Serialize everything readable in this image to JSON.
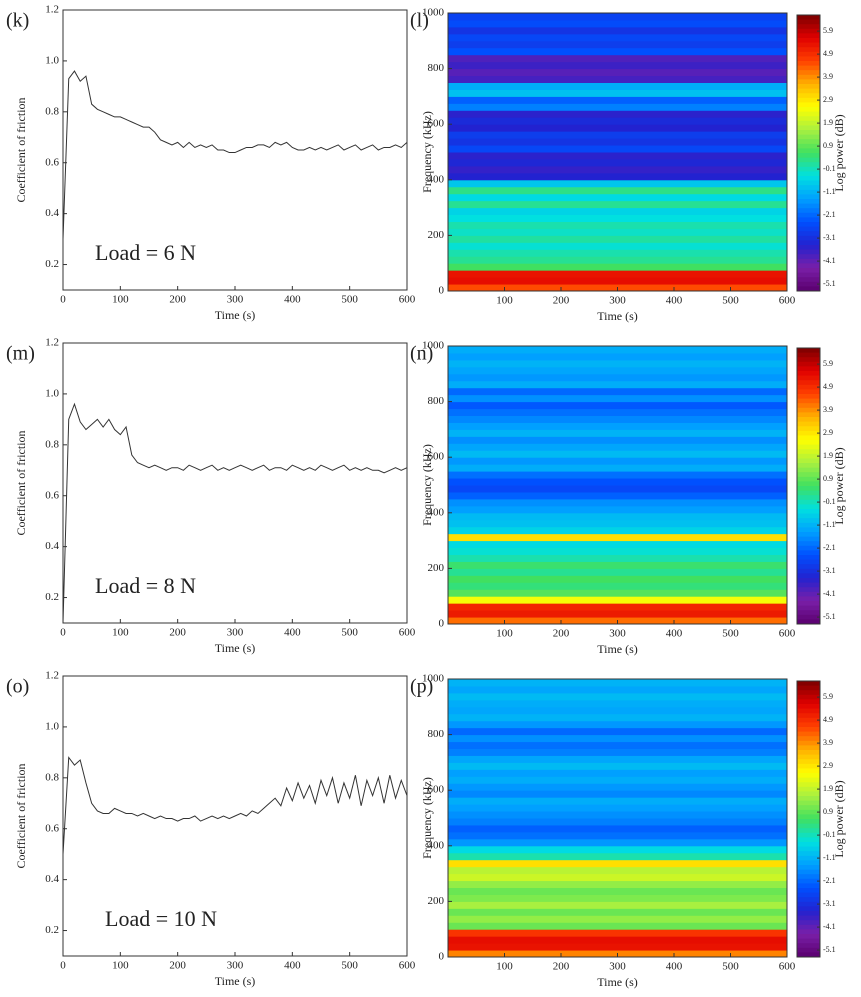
{
  "chart_data": [
    {
      "type": "line",
      "panel_label": "(k)",
      "annotation": "Load = 6 N",
      "xlabel": "Time (s)",
      "ylabel": "Coefficient of friction",
      "color": "#333333",
      "x": [
        0,
        10,
        20,
        30,
        40,
        50,
        60,
        70,
        80,
        90,
        100,
        110,
        120,
        130,
        140,
        150,
        160,
        170,
        180,
        190,
        200,
        210,
        220,
        230,
        240,
        250,
        260,
        270,
        280,
        290,
        300,
        310,
        320,
        330,
        340,
        350,
        360,
        370,
        380,
        390,
        400,
        410,
        420,
        430,
        440,
        450,
        460,
        470,
        480,
        490,
        500,
        510,
        520,
        530,
        540,
        550,
        560,
        570,
        580,
        590,
        600
      ],
      "values": [
        0.3,
        0.93,
        0.96,
        0.92,
        0.94,
        0.83,
        0.81,
        0.8,
        0.79,
        0.78,
        0.78,
        0.77,
        0.76,
        0.75,
        0.74,
        0.74,
        0.72,
        0.69,
        0.68,
        0.67,
        0.68,
        0.66,
        0.68,
        0.66,
        0.67,
        0.66,
        0.67,
        0.65,
        0.65,
        0.64,
        0.64,
        0.65,
        0.66,
        0.66,
        0.67,
        0.67,
        0.66,
        0.68,
        0.67,
        0.68,
        0.66,
        0.65,
        0.65,
        0.66,
        0.65,
        0.66,
        0.65,
        0.66,
        0.67,
        0.65,
        0.66,
        0.67,
        0.65,
        0.66,
        0.67,
        0.65,
        0.66,
        0.66,
        0.67,
        0.66,
        0.68
      ],
      "xlim": [
        0,
        600
      ],
      "xticks": [
        0,
        100,
        200,
        300,
        400,
        500,
        600
      ],
      "ylim": [
        0.1,
        1.2
      ],
      "yticks": [
        0.2,
        0.4,
        0.6,
        0.8,
        {
          "value": 1.0,
          "label": "1.0"
        },
        1.2
      ]
    },
    {
      "type": "heatmap",
      "panel_label": "(l)",
      "xlabel": "Time (s)",
      "ylabel": "Frequency (kHz)",
      "clabel": "Log power (dB)",
      "ybins": [
        0,
        25,
        50,
        75,
        100,
        125,
        150,
        175,
        200,
        225,
        250,
        275,
        300,
        325,
        350,
        375,
        400,
        425,
        450,
        475,
        500,
        525,
        550,
        575,
        600,
        625,
        650,
        675,
        700,
        725,
        750,
        775,
        800,
        825,
        850,
        875,
        900,
        925,
        950,
        975,
        1000
      ],
      "values": [
        4.5,
        5.4,
        5.3,
        0.6,
        0.2,
        0.0,
        -0.3,
        0.1,
        -0.2,
        0.0,
        -0.4,
        -0.6,
        0.2,
        -0.5,
        0.3,
        -0.8,
        -3.4,
        -3.6,
        -3.3,
        -3.5,
        -2.6,
        -3.0,
        -2.8,
        -3.4,
        -3.2,
        -3.5,
        -1.8,
        -2.2,
        -0.9,
        -1.2,
        -3.8,
        -4.0,
        -3.7,
        -3.9,
        -2.4,
        -2.8,
        -2.6,
        -3.0,
        -2.5,
        -2.7
      ],
      "xlim": [
        0,
        600
      ],
      "xticks": [
        100,
        200,
        300,
        400,
        500,
        600
      ],
      "ylim": [
        0,
        1000
      ],
      "yticks": [
        0,
        200,
        400,
        600,
        800,
        1000
      ],
      "clim": [
        -5.4,
        6.6
      ],
      "cticks": [
        5.9,
        4.9,
        3.9,
        2.9,
        1.9,
        0.9,
        -0.1,
        -1.1,
        -2.1,
        -3.1,
        -4.1,
        -5.1
      ],
      "colormap": [
        "#5a006e",
        "#7a1fa8",
        "#2222d0",
        "#0050ff",
        "#00a0ff",
        "#00e0e0",
        "#40e060",
        "#a8f040",
        "#ffff00",
        "#ffb000",
        "#ff4000",
        "#e00000",
        "#7a0000"
      ]
    },
    {
      "type": "line",
      "panel_label": "(m)",
      "annotation": "Load = 8 N",
      "xlabel": "Time (s)",
      "ylabel": "Coefficient of friction",
      "color": "#333333",
      "x": [
        0,
        10,
        20,
        30,
        40,
        50,
        60,
        70,
        80,
        90,
        100,
        110,
        120,
        130,
        140,
        150,
        160,
        170,
        180,
        190,
        200,
        210,
        220,
        230,
        240,
        250,
        260,
        270,
        280,
        290,
        300,
        310,
        320,
        330,
        340,
        350,
        360,
        370,
        380,
        390,
        400,
        410,
        420,
        430,
        440,
        450,
        460,
        470,
        480,
        490,
        500,
        510,
        520,
        530,
        540,
        550,
        560,
        570,
        580,
        590,
        600
      ],
      "values": [
        0.1,
        0.9,
        0.96,
        0.89,
        0.86,
        0.88,
        0.9,
        0.87,
        0.9,
        0.86,
        0.84,
        0.87,
        0.76,
        0.73,
        0.72,
        0.71,
        0.72,
        0.71,
        0.7,
        0.71,
        0.71,
        0.7,
        0.72,
        0.71,
        0.7,
        0.71,
        0.72,
        0.7,
        0.71,
        0.7,
        0.71,
        0.72,
        0.71,
        0.7,
        0.71,
        0.72,
        0.7,
        0.71,
        0.71,
        0.7,
        0.72,
        0.71,
        0.7,
        0.71,
        0.7,
        0.72,
        0.71,
        0.7,
        0.71,
        0.72,
        0.7,
        0.71,
        0.7,
        0.71,
        0.7,
        0.7,
        0.69,
        0.7,
        0.71,
        0.7,
        0.71
      ],
      "xlim": [
        0,
        600
      ],
      "xticks": [
        0,
        100,
        200,
        300,
        400,
        500,
        600
      ],
      "ylim": [
        0.1,
        1.2
      ],
      "yticks": [
        0.2,
        0.4,
        0.6,
        0.8,
        {
          "value": 1.0,
          "label": "1.0"
        },
        1.2
      ]
    },
    {
      "type": "heatmap",
      "panel_label": "(n)",
      "xlabel": "Time (s)",
      "ylabel": "Frequency (kHz)",
      "clabel": "Log power (dB)",
      "ybins": [
        0,
        25,
        50,
        75,
        100,
        125,
        150,
        175,
        200,
        225,
        250,
        275,
        300,
        325,
        350,
        375,
        400,
        425,
        450,
        475,
        500,
        525,
        550,
        575,
        600,
        625,
        650,
        675,
        700,
        725,
        750,
        775,
        800,
        825,
        850,
        875,
        900,
        925,
        950,
        975,
        1000
      ],
      "values": [
        4.2,
        5.2,
        5.0,
        2.5,
        0.8,
        0.4,
        0.6,
        0.2,
        0.5,
        0.0,
        -0.3,
        -0.5,
        3.0,
        -0.6,
        -0.9,
        -1.0,
        -1.4,
        -1.6,
        -2.2,
        -2.6,
        -2.4,
        -2.0,
        -1.2,
        -1.5,
        -1.0,
        -1.3,
        -1.6,
        -1.1,
        -1.4,
        -1.7,
        -2.0,
        -2.3,
        -1.6,
        -2.1,
        -1.2,
        -1.5,
        -1.3,
        -1.1,
        -1.4,
        -1.2
      ],
      "xlim": [
        0,
        600
      ],
      "xticks": [
        100,
        200,
        300,
        400,
        500,
        600
      ],
      "ylim": [
        0,
        1000
      ],
      "yticks": [
        0,
        200,
        400,
        600,
        800,
        1000
      ],
      "clim": [
        -5.4,
        6.6
      ],
      "cticks": [
        5.9,
        4.9,
        3.9,
        2.9,
        1.9,
        0.9,
        -0.1,
        -1.1,
        -2.1,
        -3.1,
        -4.1,
        -5.1
      ],
      "colormap": [
        "#5a006e",
        "#7a1fa8",
        "#2222d0",
        "#0050ff",
        "#00a0ff",
        "#00e0e0",
        "#40e060",
        "#a8f040",
        "#ffff00",
        "#ffb000",
        "#ff4000",
        "#e00000",
        "#7a0000"
      ]
    },
    {
      "type": "line",
      "panel_label": "(o)",
      "annotation": "Load = 10 N",
      "xlabel": "Time (s)",
      "ylabel": "Coefficient of friction",
      "color": "#333333",
      "x": [
        0,
        10,
        20,
        30,
        40,
        50,
        60,
        70,
        80,
        90,
        100,
        110,
        120,
        130,
        140,
        150,
        160,
        170,
        180,
        190,
        200,
        210,
        220,
        230,
        240,
        250,
        260,
        270,
        280,
        290,
        300,
        310,
        320,
        330,
        340,
        350,
        360,
        370,
        380,
        390,
        400,
        410,
        420,
        430,
        440,
        450,
        460,
        470,
        480,
        490,
        500,
        510,
        520,
        530,
        540,
        550,
        560,
        570,
        580,
        590,
        600
      ],
      "values": [
        0.5,
        0.88,
        0.85,
        0.87,
        0.78,
        0.7,
        0.67,
        0.66,
        0.66,
        0.68,
        0.67,
        0.66,
        0.66,
        0.65,
        0.66,
        0.65,
        0.64,
        0.65,
        0.64,
        0.64,
        0.63,
        0.64,
        0.64,
        0.65,
        0.63,
        0.64,
        0.65,
        0.64,
        0.65,
        0.64,
        0.65,
        0.66,
        0.65,
        0.67,
        0.66,
        0.68,
        0.7,
        0.72,
        0.69,
        0.76,
        0.71,
        0.78,
        0.72,
        0.77,
        0.7,
        0.79,
        0.73,
        0.8,
        0.7,
        0.78,
        0.72,
        0.81,
        0.69,
        0.79,
        0.73,
        0.8,
        0.7,
        0.81,
        0.72,
        0.79,
        0.73
      ],
      "xlim": [
        0,
        600
      ],
      "xticks": [
        0,
        100,
        200,
        300,
        400,
        500,
        600
      ],
      "ylim": [
        0.1,
        1.2
      ],
      "yticks": [
        0.2,
        0.4,
        0.6,
        0.8,
        {
          "value": 1.0,
          "label": "1.0"
        },
        1.2
      ]
    },
    {
      "type": "heatmap",
      "panel_label": "(p)",
      "xlabel": "Time (s)",
      "ylabel": "Frequency (kHz)",
      "clabel": "Log power (dB)",
      "ybins": [
        0,
        25,
        50,
        75,
        100,
        125,
        150,
        175,
        200,
        225,
        250,
        275,
        300,
        325,
        350,
        375,
        400,
        425,
        450,
        475,
        500,
        525,
        550,
        575,
        600,
        625,
        650,
        675,
        700,
        725,
        750,
        775,
        800,
        825,
        850,
        875,
        900,
        925,
        950,
        975,
        1000
      ],
      "values": [
        4.0,
        5.3,
        5.4,
        4.8,
        1.0,
        1.4,
        1.0,
        1.6,
        1.2,
        1.0,
        1.4,
        2.0,
        1.8,
        3.0,
        0.0,
        -0.5,
        -1.5,
        -2.0,
        -2.2,
        -1.8,
        -1.6,
        -1.4,
        -1.2,
        -1.7,
        -1.5,
        -1.2,
        -1.4,
        -1.0,
        -1.3,
        -1.8,
        -2.0,
        -1.6,
        -2.1,
        -1.5,
        -1.1,
        -1.3,
        -1.2,
        -1.0,
        -1.3,
        -1.1
      ],
      "xlim": [
        0,
        600
      ],
      "xticks": [
        100,
        200,
        300,
        400,
        500,
        600
      ],
      "ylim": [
        0,
        1000
      ],
      "yticks": [
        0,
        200,
        400,
        600,
        800,
        1000
      ],
      "clim": [
        -5.4,
        6.6
      ],
      "cticks": [
        5.9,
        4.9,
        3.9,
        2.9,
        1.9,
        0.9,
        -0.1,
        -1.1,
        -2.1,
        -3.1,
        -4.1,
        -5.1
      ],
      "colormap": [
        "#5a006e",
        "#7a1fa8",
        "#2222d0",
        "#0050ff",
        "#00a0ff",
        "#00e0e0",
        "#40e060",
        "#a8f040",
        "#ffff00",
        "#ffb000",
        "#ff4000",
        "#e00000",
        "#7a0000"
      ]
    }
  ]
}
